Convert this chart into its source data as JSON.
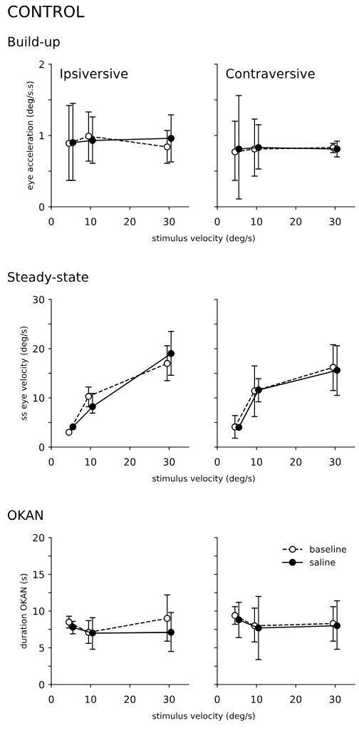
{
  "chart_data": [
    {
      "type": "line",
      "title": "Build-up",
      "annotations": [
        "CONTROL",
        "Ipsiversive"
      ],
      "xlabel": "stimulus velocity (deg/s)",
      "ylabel": "eye acceleration (deg/s.s)",
      "xlim": [
        0,
        35
      ],
      "xticks": [
        0,
        10,
        20,
        30
      ],
      "ylim": [
        0,
        2
      ],
      "yticks": [
        0,
        {
          "value": 0.5,
          "label": null
        },
        1,
        {
          "value": 1.5,
          "label": null
        },
        2
      ],
      "marker": "circle",
      "series": [
        {
          "color": "#000000",
          "line_style": "dashed",
          "x": [
            4.5,
            9.5,
            29.5
          ],
          "values": [
            0.89,
            0.99,
            0.84
          ],
          "errors": [
            [
              0.37,
              1.42
            ],
            [
              0.64,
              1.33
            ],
            [
              0.61,
              1.07
            ]
          ]
        },
        {
          "color": "#000000",
          "line_style": "solid",
          "x": [
            5.5,
            10.5,
            30.5
          ],
          "values": [
            0.9,
            0.93,
            0.96
          ],
          "errors": [
            [
              0.37,
              1.45
            ],
            [
              0.61,
              1.26
            ],
            [
              0.63,
              1.29
            ]
          ]
        }
      ]
    },
    {
      "type": "line",
      "annotations": [
        "Contraversive"
      ],
      "xlim": [
        0,
        35
      ],
      "xticks": [
        0,
        10,
        20,
        30
      ],
      "ylim": [
        0,
        2
      ],
      "yticks": [
        0,
        0.5,
        1,
        1.5,
        2
      ],
      "tick_labels": "x",
      "marker": "circle",
      "series": [
        {
          "color": "#000000",
          "line_style": "dashed",
          "x": [
            4.5,
            9.5,
            29.5
          ],
          "values": [
            0.77,
            0.81,
            0.83
          ],
          "errors": [
            [
              0.37,
              1.2
            ],
            [
              0.43,
              1.23
            ],
            [
              0.76,
              0.89
            ]
          ]
        },
        {
          "color": "#000000",
          "line_style": "solid",
          "x": [
            5.5,
            10.5,
            30.5
          ],
          "values": [
            0.81,
            0.83,
            0.81
          ],
          "errors": [
            [
              0.11,
              1.56
            ],
            [
              0.53,
              1.15
            ],
            [
              0.7,
              0.92
            ]
          ]
        }
      ]
    },
    {
      "type": "line",
      "title": "Steady-state",
      "xlabel": "stimulus velocity (deg/s)",
      "ylabel": "ss eye velocity (deg/s)",
      "xlim": [
        0,
        35
      ],
      "xticks": [
        0,
        10,
        20,
        30
      ],
      "ylim": [
        0,
        30
      ],
      "yticks": [
        0,
        {
          "value": 5,
          "label": null
        },
        10,
        {
          "value": 15,
          "label": null
        },
        20,
        {
          "value": 25,
          "label": null
        },
        30
      ],
      "marker": "circle",
      "series": [
        {
          "color": "#000000",
          "line_style": "dashed",
          "x": [
            4.5,
            9.5,
            29.5
          ],
          "values": [
            3.0,
            10.3,
            17.0
          ],
          "errors": [
            null,
            [
              8.2,
              12.2
            ],
            [
              13.5,
              20.6
            ]
          ]
        },
        {
          "color": "#000000",
          "line_style": "solid",
          "x": [
            5.5,
            10.5,
            30.5
          ],
          "values": [
            4.1,
            8.2,
            19.0
          ],
          "errors": [
            null,
            [
              6.9,
              10.9
            ],
            [
              14.6,
              23.5
            ]
          ]
        }
      ]
    },
    {
      "type": "line",
      "xlim": [
        0,
        35
      ],
      "xticks": [
        0,
        10,
        20,
        30
      ],
      "ylim": [
        0,
        30
      ],
      "yticks": [
        0,
        5,
        10,
        15,
        20,
        25,
        30
      ],
      "tick_labels": "x",
      "marker": "circle",
      "series": [
        {
          "color": "#000000",
          "line_style": "dashed",
          "x": [
            4.5,
            9.5,
            29.5
          ],
          "values": [
            4.1,
            11.4,
            16.2
          ],
          "errors": [
            [
              1.8,
              6.4
            ],
            [
              6.2,
              16.5
            ],
            [
              11.5,
              20.8
            ]
          ]
        },
        {
          "color": "#000000",
          "line_style": "solid",
          "x": [
            5.5,
            10.5,
            30.5
          ],
          "values": [
            4.0,
            11.6,
            15.6
          ],
          "errors": [
            null,
            [
              9.2,
              13.9
            ],
            [
              10.5,
              20.6
            ]
          ]
        }
      ]
    },
    {
      "type": "line",
      "title": "OKAN",
      "xlabel": "stimulus velocity (deg/s)",
      "ylabel": "duration OKAN (s)",
      "xlim": [
        0,
        35
      ],
      "xticks": [
        0,
        10,
        20,
        30
      ],
      "ylim": [
        0,
        20
      ],
      "yticks": [
        0,
        {
          "value": 2.5,
          "label": null
        },
        5,
        {
          "value": 7.5,
          "label": null
        },
        10,
        {
          "value": 12.5,
          "label": null
        },
        15,
        {
          "value": 17.5,
          "label": null
        },
        20
      ],
      "marker": "circle",
      "series": [
        {
          "color": "#000000",
          "line_style": "dashed",
          "x": [
            4.5,
            9.5,
            29.5
          ],
          "values": [
            8.5,
            7.1,
            9.0
          ],
          "errors": [
            [
              7.7,
              9.3
            ],
            [
              5.6,
              8.7
            ],
            [
              5.9,
              12.2
            ]
          ]
        },
        {
          "color": "#000000",
          "line_style": "solid",
          "x": [
            5.5,
            10.5,
            30.5
          ],
          "values": [
            7.8,
            7.0,
            7.1
          ],
          "errors": [
            [
              6.9,
              8.6
            ],
            [
              4.8,
              9.1
            ],
            [
              4.5,
              9.8
            ]
          ]
        }
      ]
    },
    {
      "type": "line",
      "xlim": [
        0,
        35
      ],
      "xticks": [
        0,
        10,
        20,
        30
      ],
      "ylim": [
        0,
        20
      ],
      "yticks": [
        0,
        2.5,
        5,
        7.5,
        10,
        12.5,
        15,
        17.5,
        20
      ],
      "tick_labels": "x",
      "marker": "circle",
      "legend": "top right",
      "series": [
        {
          "name": "baseline",
          "color": "#000000",
          "line_style": "dashed",
          "x": [
            4.5,
            9.5,
            29.5
          ],
          "values": [
            9.4,
            8.0,
            8.3
          ],
          "errors": [
            [
              8.2,
              10.6
            ],
            [
              5.8,
              10.4
            ],
            [
              5.9,
              10.6
            ]
          ]
        },
        {
          "name": "saline",
          "color": "#000000",
          "line_style": "solid",
          "x": [
            5.5,
            10.5,
            30.5
          ],
          "values": [
            8.8,
            7.7,
            8.0
          ],
          "errors": [
            [
              6.4,
              11.2
            ],
            [
              3.4,
              12.0
            ],
            [
              4.8,
              11.4
            ]
          ]
        }
      ]
    }
  ]
}
